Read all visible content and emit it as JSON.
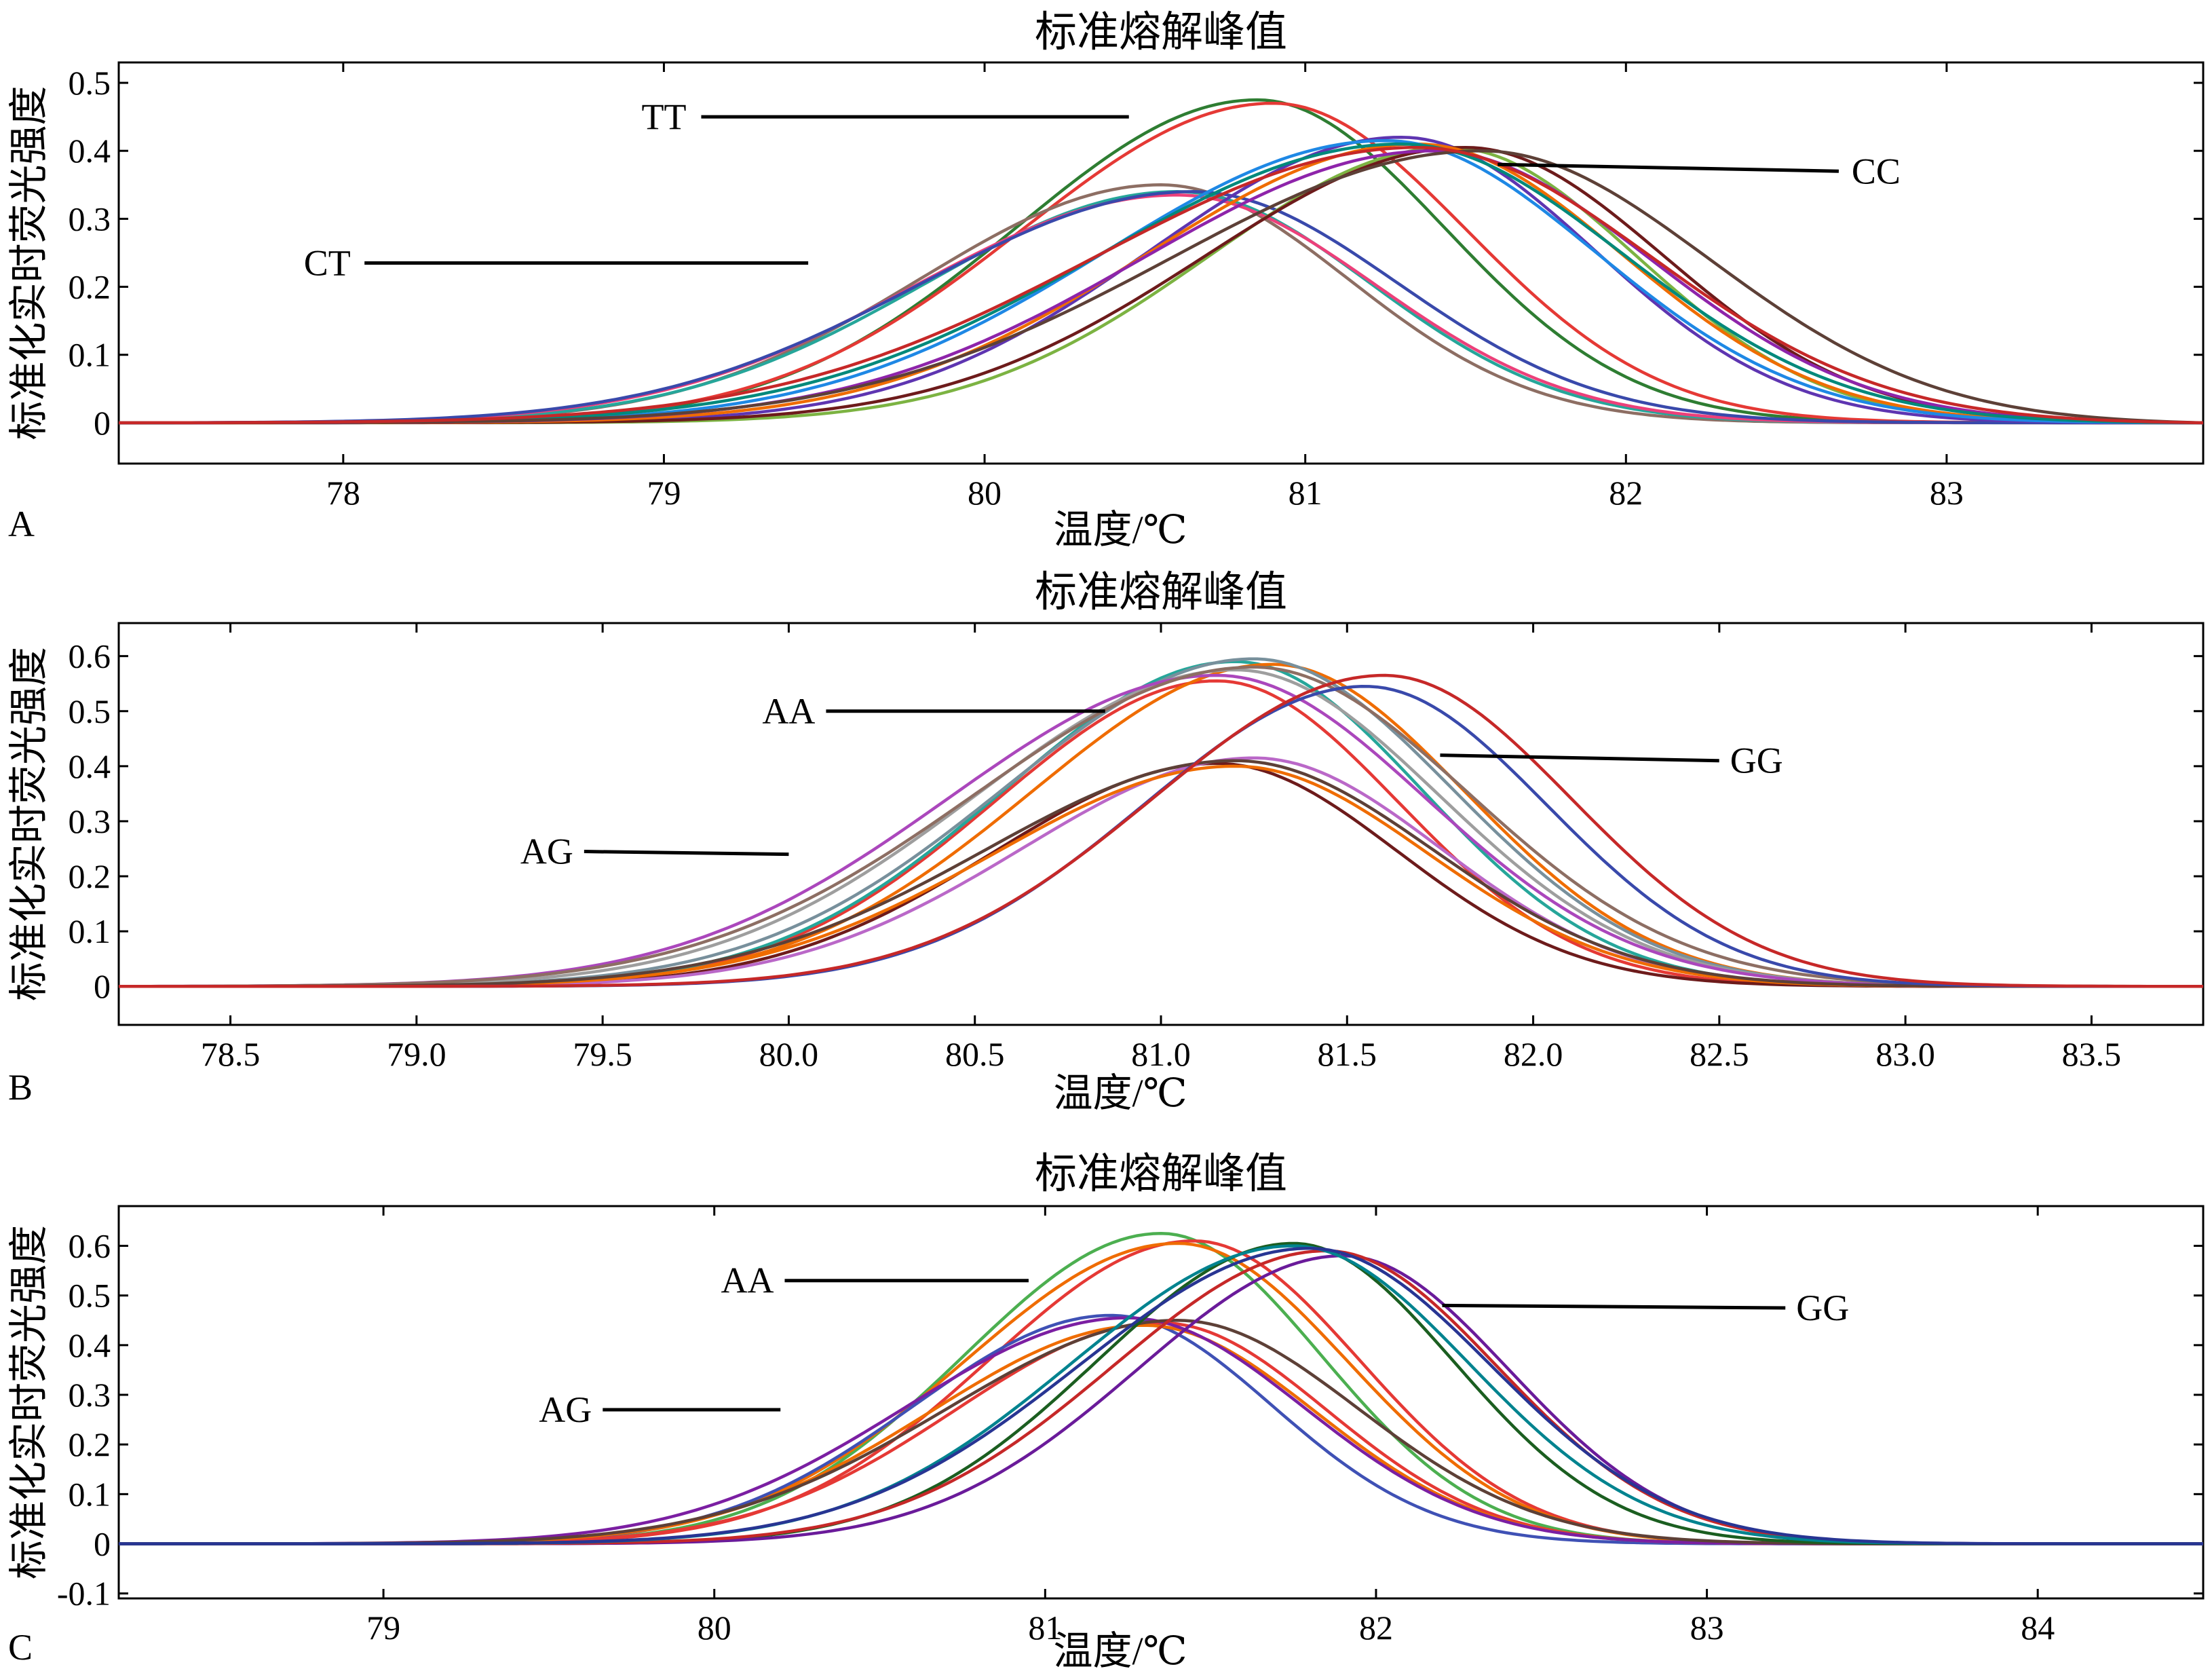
{
  "chart_data": [
    {
      "panel_label": "A",
      "type": "line",
      "title": "标准熔解峰值",
      "xlabel": "温度/℃",
      "ylabel": "标准化实时荧光强度",
      "xlim": [
        77.3,
        83.8
      ],
      "ylim": [
        -0.06,
        0.53
      ],
      "xticks": [
        78,
        79,
        80,
        81,
        82,
        83
      ],
      "xtick_labels": [
        "78",
        "79",
        "80",
        "81",
        "82",
        "83"
      ],
      "yticks": [
        0,
        0.1,
        0.2,
        0.3,
        0.4,
        0.5
      ],
      "ytick_labels": [
        "0",
        "0.1",
        "0.2",
        "0.3",
        "0.4",
        "0.5"
      ],
      "grid": false,
      "legend": "none",
      "genotypes": [
        {
          "name": "TT",
          "peak_x": 80.85,
          "peak_y": 0.47,
          "label_text": "TT",
          "label_at": [
            79.0,
            0.45
          ],
          "pointer_to": [
            80.45,
            0.45
          ],
          "curves": [
            {
              "color": "#2e7d32",
              "peak_x": 80.85,
              "peak_y": 0.475
            },
            {
              "color": "#e53935",
              "peak_x": 80.9,
              "peak_y": 0.47
            }
          ]
        },
        {
          "name": "CT",
          "peak_x": 80.6,
          "peak_y": 0.34,
          "label_text": "CT",
          "label_at": [
            77.95,
            0.235
          ],
          "pointer_to": [
            79.45,
            0.235
          ],
          "curves": [
            {
              "color": "#8d6e63",
              "peak_x": 80.55,
              "peak_y": 0.35
            },
            {
              "color": "#26a69a",
              "peak_x": 80.6,
              "peak_y": 0.34
            },
            {
              "color": "#ec407a",
              "peak_x": 80.6,
              "peak_y": 0.335
            },
            {
              "color": "#3949ab",
              "peak_x": 80.65,
              "peak_y": 0.34
            }
          ]
        },
        {
          "name": "CC",
          "peak_x": 81.35,
          "peak_y": 0.41,
          "label_text": "CC",
          "label_at": [
            82.78,
            0.37
          ],
          "pointer_to": [
            81.6,
            0.38
          ],
          "curves": [
            {
              "color": "#7cb342",
              "peak_x": 81.45,
              "peak_y": 0.405
            },
            {
              "color": "#5e35b1",
              "peak_x": 81.3,
              "peak_y": 0.42
            },
            {
              "color": "#6d1b1b",
              "peak_x": 81.5,
              "peak_y": 0.405
            },
            {
              "color": "#ef6c00",
              "peak_x": 81.35,
              "peak_y": 0.41
            },
            {
              "color": "#1e88e5",
              "peak_x": 81.25,
              "peak_y": 0.415
            },
            {
              "color": "#8e24aa",
              "peak_x": 81.4,
              "peak_y": 0.4
            },
            {
              "color": "#00897b",
              "peak_x": 81.3,
              "peak_y": 0.41
            },
            {
              "color": "#5d4037",
              "peak_x": 81.55,
              "peak_y": 0.4
            },
            {
              "color": "#c62828",
              "peak_x": 81.35,
              "peak_y": 0.405
            }
          ]
        }
      ]
    },
    {
      "panel_label": "B",
      "type": "line",
      "title": "标准熔解峰值",
      "xlabel": "温度/℃",
      "ylabel": "标准化实时荧光强度",
      "xlim": [
        78.2,
        83.8
      ],
      "ylim": [
        -0.07,
        0.66
      ],
      "xticks": [
        78.5,
        79.0,
        79.5,
        80.0,
        80.5,
        81.0,
        81.5,
        82.0,
        82.5,
        83.0,
        83.5
      ],
      "xtick_labels": [
        "78.5",
        "79.0",
        "79.5",
        "80.0",
        "80.5",
        "81.0",
        "81.5",
        "82.0",
        "82.5",
        "83.0",
        "83.5"
      ],
      "yticks": [
        0,
        0.1,
        0.2,
        0.3,
        0.4,
        0.5,
        0.6
      ],
      "ytick_labels": [
        "0",
        "0.1",
        "0.2",
        "0.3",
        "0.4",
        "0.5",
        "0.6"
      ],
      "grid": false,
      "legend": "none",
      "genotypes": [
        {
          "name": "AA",
          "peak_x": 81.2,
          "peak_y": 0.58,
          "label_text": "AA",
          "label_at": [
            80.0,
            0.5
          ],
          "pointer_to": [
            80.85,
            0.5
          ],
          "curves": [
            {
              "color": "#e53935",
              "peak_x": 81.15,
              "peak_y": 0.555
            },
            {
              "color": "#26a69a",
              "peak_x": 81.2,
              "peak_y": 0.59
            },
            {
              "color": "#ef6c00",
              "peak_x": 81.3,
              "peak_y": 0.585
            },
            {
              "color": "#78909c",
              "peak_x": 81.25,
              "peak_y": 0.595
            },
            {
              "color": "#9e9e9e",
              "peak_x": 81.2,
              "peak_y": 0.575
            },
            {
              "color": "#ab47bc",
              "peak_x": 81.15,
              "peak_y": 0.565
            },
            {
              "color": "#8d6e63",
              "peak_x": 81.25,
              "peak_y": 0.58
            }
          ]
        },
        {
          "name": "AG",
          "peak_x": 81.2,
          "peak_y": 0.4,
          "label_text": "AG",
          "label_at": [
            79.35,
            0.245
          ],
          "pointer_to": [
            80.0,
            0.24
          ],
          "curves": [
            {
              "color": "#6d1b1b",
              "peak_x": 81.15,
              "peak_y": 0.405
            },
            {
              "color": "#ba68c8",
              "peak_x": 81.25,
              "peak_y": 0.415
            },
            {
              "color": "#ef6c00",
              "peak_x": 81.2,
              "peak_y": 0.4
            },
            {
              "color": "#5d4037",
              "peak_x": 81.2,
              "peak_y": 0.41
            }
          ]
        },
        {
          "name": "GG",
          "peak_x": 81.6,
          "peak_y": 0.555,
          "label_text": "GG",
          "label_at": [
            82.6,
            0.41
          ],
          "pointer_to": [
            81.75,
            0.42
          ],
          "curves": [
            {
              "color": "#3949ab",
              "peak_x": 81.55,
              "peak_y": 0.545
            },
            {
              "color": "#c62828",
              "peak_x": 81.6,
              "peak_y": 0.565
            }
          ]
        }
      ]
    },
    {
      "panel_label": "C",
      "type": "line",
      "title": "标准熔解峰值",
      "xlabel": "温度/℃",
      "ylabel": "标准化实时荧光强度",
      "xlim": [
        78.2,
        84.5
      ],
      "ylim": [
        -0.11,
        0.68
      ],
      "xticks": [
        79,
        80,
        81,
        82,
        83,
        84
      ],
      "xtick_labels": [
        "79",
        "80",
        "81",
        "82",
        "83",
        "84"
      ],
      "yticks": [
        -0.1,
        0,
        0.1,
        0.2,
        0.3,
        0.4,
        0.5,
        0.6
      ],
      "ytick_labels": [
        "-0.1",
        "0",
        "0.1",
        "0.2",
        "0.3",
        "0.4",
        "0.5",
        "0.6"
      ],
      "grid": false,
      "legend": "none",
      "genotypes": [
        {
          "name": "AA",
          "peak_x": 81.4,
          "peak_y": 0.615,
          "label_text": "AA",
          "label_at": [
            80.1,
            0.53
          ],
          "pointer_to": [
            80.95,
            0.53
          ],
          "curves": [
            {
              "color": "#4caf50",
              "peak_x": 81.35,
              "peak_y": 0.625
            },
            {
              "color": "#e53935",
              "peak_x": 81.45,
              "peak_y": 0.61
            },
            {
              "color": "#ef6c00",
              "peak_x": 81.4,
              "peak_y": 0.605
            }
          ]
        },
        {
          "name": "AG",
          "peak_x": 81.3,
          "peak_y": 0.45,
          "label_text": "AG",
          "label_at": [
            79.55,
            0.27
          ],
          "pointer_to": [
            80.2,
            0.27
          ],
          "curves": [
            {
              "color": "#3f51b5",
              "peak_x": 81.2,
              "peak_y": 0.46
            },
            {
              "color": "#e53935",
              "peak_x": 81.35,
              "peak_y": 0.445
            },
            {
              "color": "#ef6c00",
              "peak_x": 81.3,
              "peak_y": 0.44
            },
            {
              "color": "#7b1fa2",
              "peak_x": 81.25,
              "peak_y": 0.455
            },
            {
              "color": "#5d4037",
              "peak_x": 81.4,
              "peak_y": 0.45
            }
          ]
        },
        {
          "name": "GG",
          "peak_x": 81.8,
          "peak_y": 0.6,
          "label_text": "GG",
          "label_at": [
            83.35,
            0.475
          ],
          "pointer_to": [
            82.2,
            0.48
          ],
          "curves": [
            {
              "color": "#1b5e20",
              "peak_x": 81.75,
              "peak_y": 0.605
            },
            {
              "color": "#6a1b9a",
              "peak_x": 81.9,
              "peak_y": 0.58
            },
            {
              "color": "#c62828",
              "peak_x": 81.85,
              "peak_y": 0.59
            },
            {
              "color": "#00838f",
              "peak_x": 81.75,
              "peak_y": 0.6
            },
            {
              "color": "#283593",
              "peak_x": 81.8,
              "peak_y": 0.595
            }
          ]
        }
      ]
    }
  ]
}
